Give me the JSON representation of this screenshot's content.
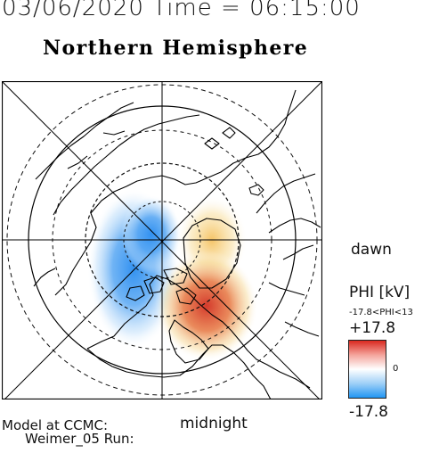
{
  "header": {
    "datetime": "03/06/2020 Time = 06:15:00",
    "title": "Northern Hemisphere"
  },
  "map": {
    "labels": {
      "dawn": "dawn",
      "midnight": "midnight"
    },
    "colors": {
      "negative": "#2e8ff0",
      "positive": "#d43a2c",
      "coast": "#000000"
    }
  },
  "colorbar": {
    "title": "PHI [kV]",
    "range_label": "-17.8<PHI<13",
    "max_label": "+17.8",
    "zero_label": "0",
    "min_label": "-17.8",
    "gradient": [
      "#d9281f",
      "#f4a49c",
      "#ffffff",
      "#9fd0f7",
      "#2196f3"
    ]
  },
  "credit": {
    "line1": "Model at CCMC:",
    "line2": "Weimer_05 Run:"
  }
}
